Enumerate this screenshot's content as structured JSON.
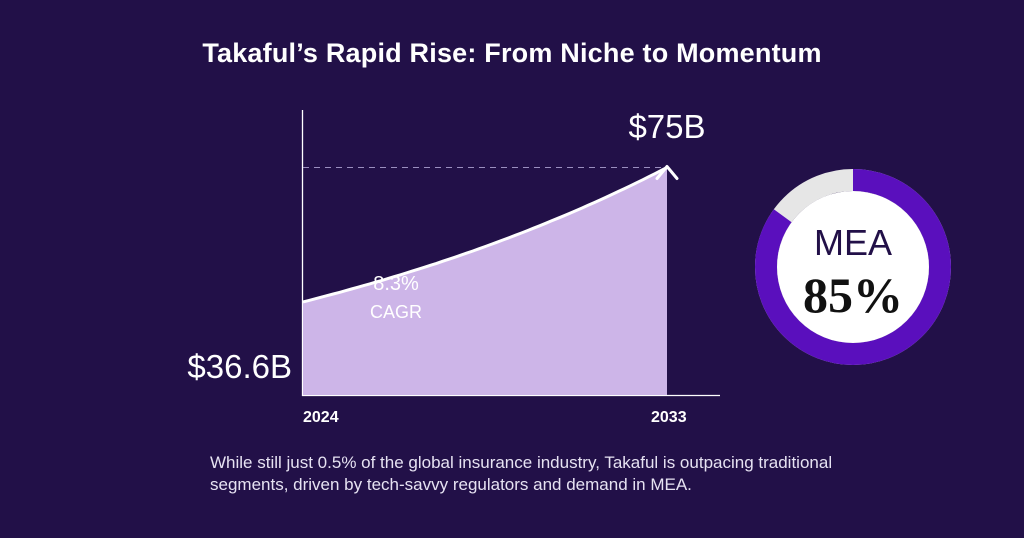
{
  "title": "Takaful’s Rapid Rise: From Niche to Momentum",
  "caption": "While still just 0.5% of the global insurance industry, Takaful is outpacing traditional segments, driven by tech-savvy regulators and demand in MEA.",
  "colors": {
    "background": "#221048",
    "area": "#cdb5e8",
    "donut_fill": "#5a0fbd",
    "donut_track": "#e6e6e6"
  },
  "chart_data": [
    {
      "type": "area",
      "x": [
        2024,
        2033
      ],
      "x_tick_labels": [
        "2024",
        "2033"
      ],
      "y": [
        36.6,
        75
      ],
      "value_labels": [
        "$36.6B",
        "$75B"
      ],
      "annotation": {
        "value": "8.3%",
        "label": "CAGR"
      },
      "growth_rate": 0.083
    },
    {
      "type": "pie",
      "label": "MEA",
      "value": 85,
      "value_text": "85%"
    }
  ]
}
